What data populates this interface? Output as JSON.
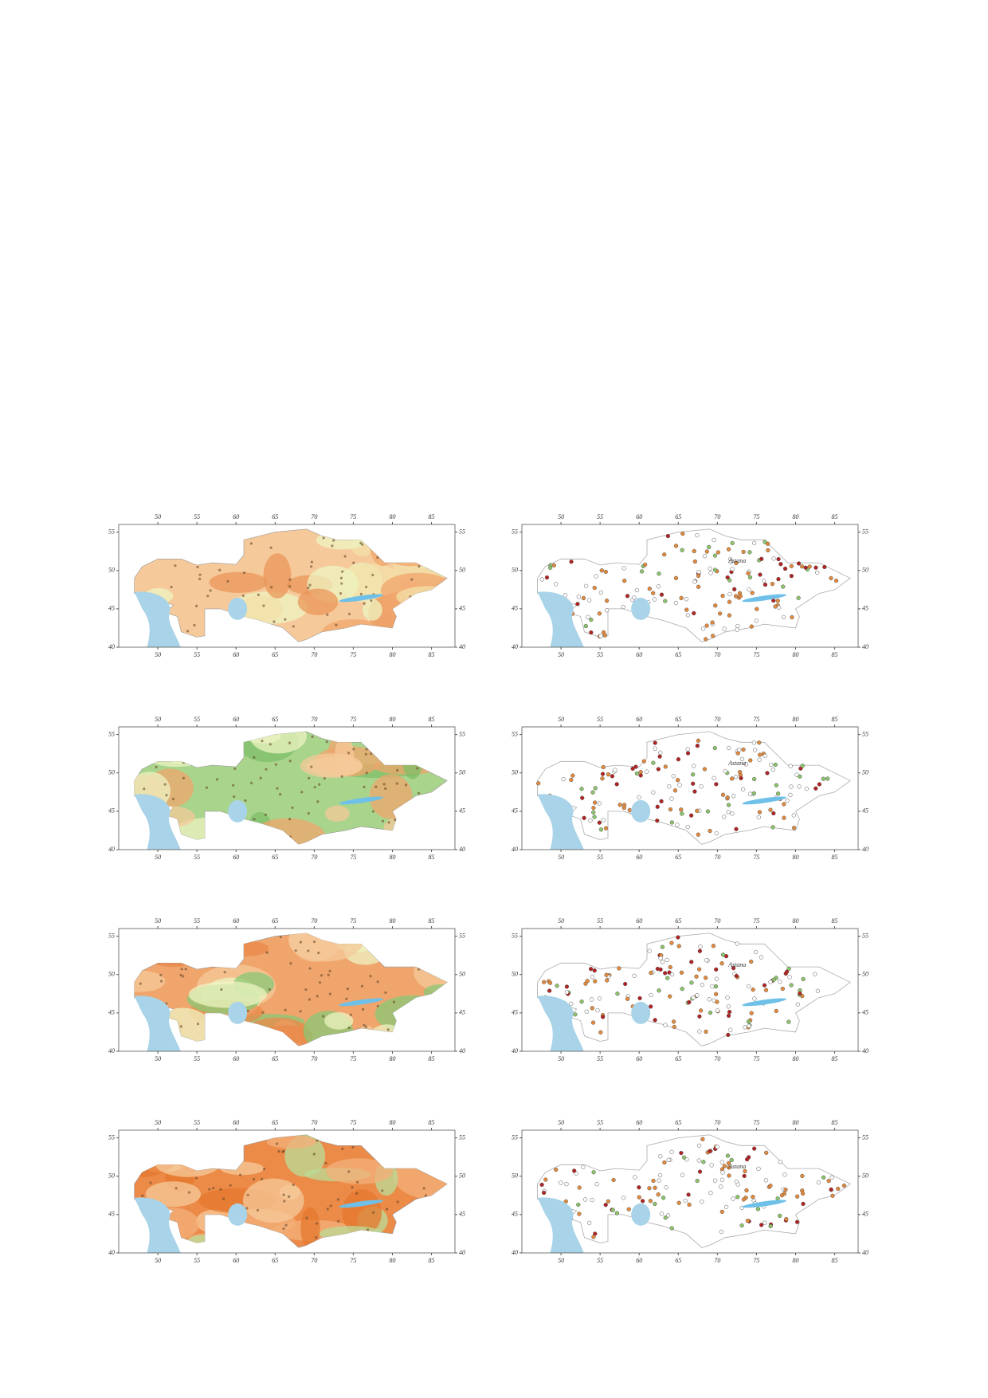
{
  "panels": [
    {
      "kind": "field",
      "lon_ticks": [
        50,
        55,
        60,
        65,
        70,
        75,
        80,
        85
      ],
      "lat_ticks": [
        55,
        50,
        45,
        40
      ],
      "lon_range": [
        45,
        88
      ],
      "lat_range": [
        40,
        56
      ]
    },
    {
      "kind": "stations",
      "city_label": "Astana",
      "lon_ticks": [
        50,
        55,
        60,
        65,
        70,
        75,
        80,
        85
      ],
      "lat_ticks": [
        55,
        50,
        45,
        40
      ],
      "lon_range": [
        45,
        88
      ],
      "lat_range": [
        40,
        56
      ]
    },
    {
      "kind": "field",
      "lon_ticks": [
        50,
        55,
        60,
        65,
        70,
        75,
        80,
        85
      ],
      "lat_ticks": [
        55,
        50,
        45,
        40
      ],
      "lon_range": [
        45,
        88
      ],
      "lat_range": [
        40,
        56
      ]
    },
    {
      "kind": "stations",
      "city_label": "Astana",
      "lon_ticks": [
        50,
        55,
        60,
        65,
        70,
        75,
        80,
        85
      ],
      "lat_ticks": [
        55,
        50,
        45,
        40
      ],
      "lon_range": [
        45,
        88
      ],
      "lat_range": [
        40,
        56
      ]
    },
    {
      "kind": "field",
      "lon_ticks": [
        50,
        55,
        60,
        65,
        70,
        75,
        80,
        85
      ],
      "lat_ticks": [
        55,
        50,
        45,
        40
      ],
      "lon_range": [
        45,
        88
      ],
      "lat_range": [
        40,
        56
      ]
    },
    {
      "kind": "stations",
      "city_label": "Astana",
      "lon_ticks": [
        50,
        55,
        60,
        65,
        70,
        75,
        80,
        85
      ],
      "lat_ticks": [
        55,
        50,
        45,
        40
      ],
      "lon_range": [
        45,
        88
      ],
      "lat_range": [
        40,
        56
      ]
    },
    {
      "kind": "field",
      "lon_ticks": [
        50,
        55,
        60,
        65,
        70,
        75,
        80,
        85
      ],
      "lat_ticks": [
        55,
        50,
        45,
        40
      ],
      "lon_range": [
        45,
        88
      ],
      "lat_range": [
        40,
        56
      ]
    },
    {
      "kind": "stations",
      "city_label": "Astana",
      "lon_ticks": [
        50,
        55,
        60,
        65,
        70,
        75,
        80,
        85
      ],
      "lat_ticks": [
        55,
        50,
        45,
        40
      ],
      "lon_range": [
        45,
        88
      ],
      "lat_range": [
        40,
        56
      ]
    }
  ]
}
